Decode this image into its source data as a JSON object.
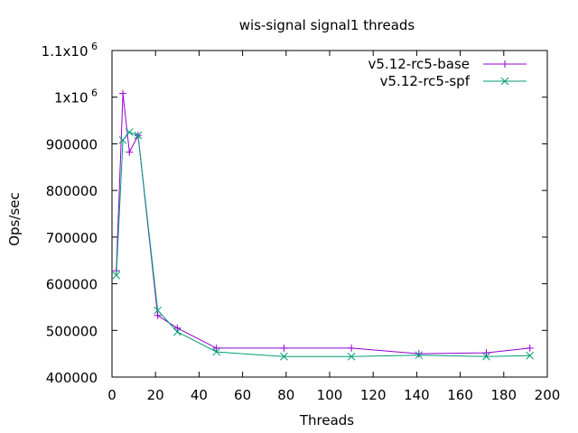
{
  "chart_data": {
    "type": "line",
    "title": "wis-signal signal1 threads",
    "xlabel": "Threads",
    "ylabel": "Ops/sec",
    "xlim": [
      0,
      200
    ],
    "ylim": [
      400000,
      1100000
    ],
    "x_ticks": [
      0,
      20,
      40,
      60,
      80,
      100,
      120,
      140,
      160,
      180,
      200
    ],
    "x_tick_labels": [
      "0",
      "20",
      "40",
      "60",
      "80",
      "100",
      "120",
      "140",
      "160",
      "180",
      "200"
    ],
    "y_ticks": [
      400000,
      500000,
      600000,
      700000,
      800000,
      900000,
      1000000,
      1100000
    ],
    "y_tick_labels": [
      {
        "text": "400000",
        "exp": ""
      },
      {
        "text": "500000",
        "exp": ""
      },
      {
        "text": "600000",
        "exp": ""
      },
      {
        "text": "700000",
        "exp": ""
      },
      {
        "text": "800000",
        "exp": ""
      },
      {
        "text": "900000",
        "exp": ""
      },
      {
        "text": "1x10",
        "exp": "6"
      },
      {
        "text": "1.1x10",
        "exp": "6"
      }
    ],
    "legend_position": "top-right",
    "grid": false,
    "series": [
      {
        "name": "v5.12-rc5-base",
        "color": "#9400d3",
        "marker": "plus",
        "x": [
          2,
          5,
          8,
          12,
          21,
          30,
          48,
          79,
          110,
          141,
          172,
          192
        ],
        "y": [
          628000,
          1008000,
          882000,
          918000,
          532000,
          505000,
          462000,
          462000,
          462000,
          450000,
          452000,
          462000
        ]
      },
      {
        "name": "v5.12-rc5-spf",
        "color": "#009e73",
        "marker": "x",
        "x": [
          2,
          5,
          8,
          12,
          21,
          30,
          48,
          79,
          110,
          141,
          172,
          192
        ],
        "y": [
          618000,
          908000,
          925000,
          918000,
          543000,
          497000,
          454000,
          444000,
          444000,
          447000,
          444000,
          446000
        ]
      }
    ]
  }
}
